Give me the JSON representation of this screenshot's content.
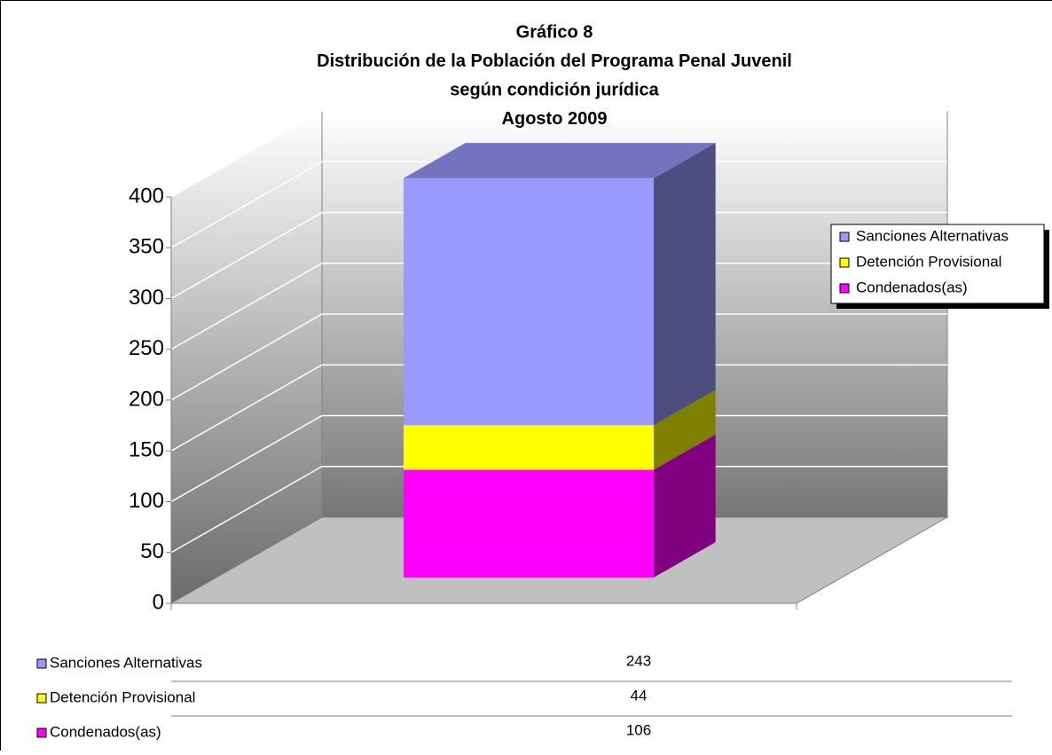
{
  "chart_data": {
    "type": "bar3d_stacked",
    "title_lines": [
      "Gráfico 8",
      "Distribución de la Población del Programa Penal Juvenil",
      "según condición jurídica",
      "Agosto 2009"
    ],
    "series": [
      {
        "name": "Sanciones Alternativas",
        "color": "#9999ff",
        "values": [
          243
        ]
      },
      {
        "name": "Detención Provisional",
        "color": "#ffff00",
        "values": [
          44
        ]
      },
      {
        "name": "Condenados(as)",
        "color": "#ff00ff",
        "values": [
          106
        ]
      }
    ],
    "ylim": [
      0,
      400
    ],
    "yticks": [
      0,
      50,
      100,
      150,
      200,
      250,
      300,
      350,
      400
    ],
    "grid": true,
    "legend": "right",
    "data_table": true
  }
}
